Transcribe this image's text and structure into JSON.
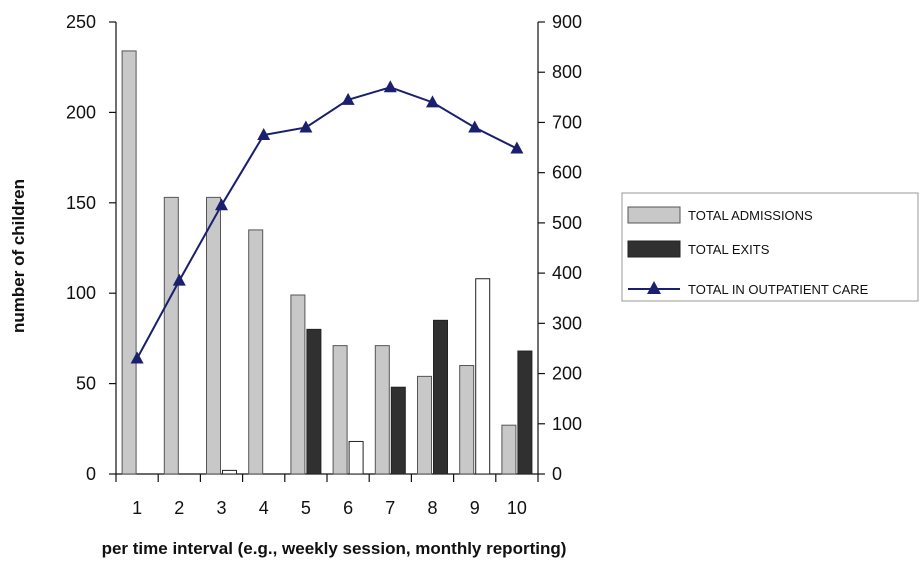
{
  "chart_data": {
    "type": "bar",
    "categories": [
      "1",
      "2",
      "3",
      "4",
      "5",
      "6",
      "7",
      "8",
      "9",
      "10"
    ],
    "series": [
      {
        "name": "TOTAL ADMISSIONS",
        "kind": "bar",
        "axis": "left",
        "color": "#c8c8c8",
        "values": [
          234,
          153,
          153,
          135,
          99,
          71,
          71,
          54,
          60,
          27
        ]
      },
      {
        "name": "TOTAL EXITS",
        "kind": "bar",
        "axis": "left",
        "color": "#303030",
        "values": [
          0,
          0,
          2,
          0,
          80,
          18,
          48,
          85,
          108,
          68
        ]
      },
      {
        "name": "TOTAL IN OUTPATIENT CARE",
        "kind": "line",
        "axis": "right",
        "color": "#1a1f6e",
        "values": [
          230,
          385,
          535,
          675,
          690,
          745,
          770,
          740,
          690,
          648
        ]
      }
    ],
    "xlabel": "per time interval (e.g., weekly session, monthly reporting)",
    "ylabel": "number of children",
    "ylim_left": [
      0,
      250
    ],
    "yticks_left": [
      "0",
      "50",
      "100",
      "150",
      "200",
      "250"
    ],
    "ylim_right": [
      0,
      900
    ],
    "yticks_right": [
      "0",
      "100",
      "200",
      "300",
      "400",
      "500",
      "600",
      "700",
      "800",
      "900"
    ],
    "grid": false,
    "legend": "right",
    "legend_entries": [
      "TOTAL ADMISSIONS",
      "TOTAL EXITS",
      "TOTAL IN OUTPATIENT CARE"
    ]
  }
}
